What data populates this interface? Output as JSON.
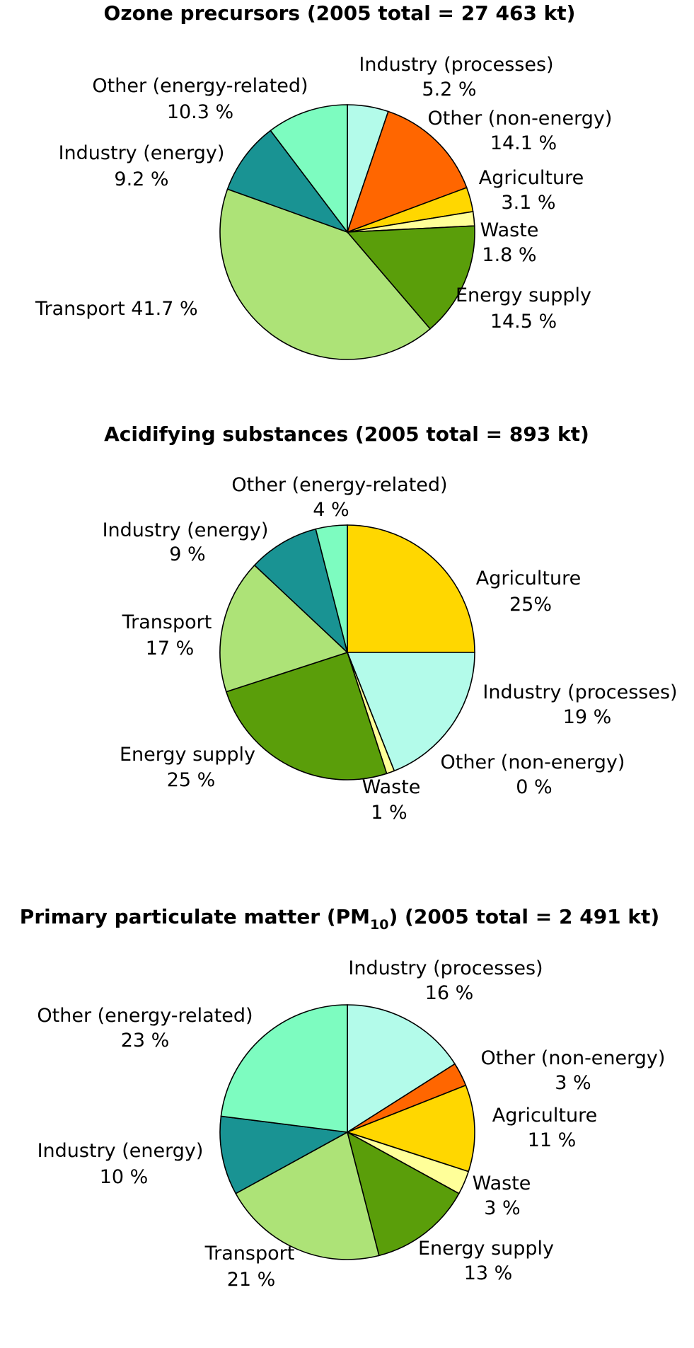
{
  "chart_data": [
    {
      "type": "pie",
      "title": "Ozone precursors (2005 total  =  27 463 kt)",
      "slices": [
        {
          "label": "Industry (processes)",
          "value": 5.2,
          "value_label": "5.2 %",
          "color": "#b3fbea"
        },
        {
          "label": "Other (non-energy)",
          "value": 14.1,
          "value_label": "14.1 %",
          "color": "#ff6600"
        },
        {
          "label": "Agriculture",
          "value": 3.1,
          "value_label": "3.1 %",
          "color": "#ffd700"
        },
        {
          "label": "Waste",
          "value": 1.8,
          "value_label": "1.8 %",
          "color": "#ffff99"
        },
        {
          "label": "Energy supply",
          "value": 14.5,
          "value_label": "14.5 %",
          "color": "#5a9e0a"
        },
        {
          "label": "Transport",
          "value": 41.7,
          "value_label": "41.7 %",
          "color": "#ade377"
        },
        {
          "label": "Industry (energy)",
          "value": 9.2,
          "value_label": "9.2 %",
          "color": "#199393"
        },
        {
          "label": "Other (energy-related)",
          "value": 10.3,
          "value_label": "10.3 %",
          "color": "#7dfcc0"
        }
      ]
    },
    {
      "type": "pie",
      "title": "Acidifying substances (2005 total  =  893 kt)",
      "slices": [
        {
          "label": "Agriculture",
          "value": 25,
          "value_label": "25%",
          "color": "#ffd700"
        },
        {
          "label": "Industry (processes)",
          "value": 19,
          "value_label": "19 %",
          "color": "#b3fbea"
        },
        {
          "label": "Other (non-energy)",
          "value": 0,
          "value_label": "0 %",
          "color": "#ff6600"
        },
        {
          "label": "Waste",
          "value": 1,
          "value_label": "1 %",
          "color": "#ffff99"
        },
        {
          "label": "Energy supply",
          "value": 25,
          "value_label": "25 %",
          "color": "#5a9e0a"
        },
        {
          "label": "Transport",
          "value": 17,
          "value_label": "17 %",
          "color": "#ade377"
        },
        {
          "label": "Industry (energy)",
          "value": 9,
          "value_label": "9 %",
          "color": "#199393"
        },
        {
          "label": "Other (energy-related)",
          "value": 4,
          "value_label": "4 %",
          "color": "#7dfcc0"
        }
      ]
    },
    {
      "type": "pie",
      "title": "Primary particulate matter (PM",
      "title_subscript": "10",
      "title_suffix": ") (2005 total  =  2 491 kt)",
      "slices": [
        {
          "label": "Industry (processes)",
          "value": 16,
          "value_label": "16 %",
          "color": "#b3fbea"
        },
        {
          "label": "Other (non-energy)",
          "value": 3,
          "value_label": "3 %",
          "color": "#ff6600"
        },
        {
          "label": "Agriculture",
          "value": 11,
          "value_label": "11 %",
          "color": "#ffd700"
        },
        {
          "label": "Waste",
          "value": 3,
          "value_label": "3 %",
          "color": "#ffff99"
        },
        {
          "label": "Energy supply",
          "value": 13,
          "value_label": "13 %",
          "color": "#5a9e0a"
        },
        {
          "label": "Transport",
          "value": 21,
          "value_label": "21 %",
          "color": "#ade377"
        },
        {
          "label": "Industry (energy)",
          "value": 10,
          "value_label": "10 %",
          "color": "#199393"
        },
        {
          "label": "Other (energy-related)",
          "value": 23,
          "value_label": "23 %",
          "color": "#7dfcc0"
        }
      ]
    }
  ]
}
